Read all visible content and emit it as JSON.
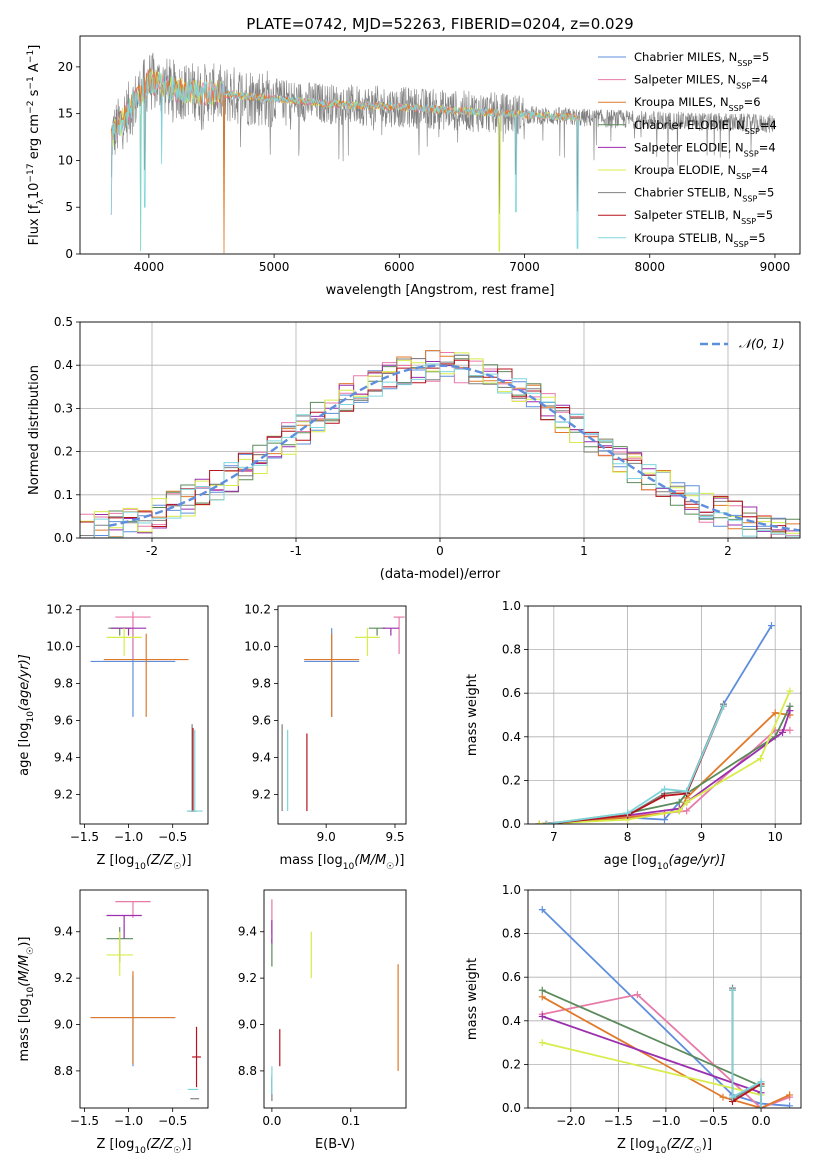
{
  "figure_title": "PLATE=0742, MJD=52263, FIBERID=0204, z=0.029",
  "colors": {
    "chabrier_miles": "#5f8fdc",
    "salpeter_miles": "#e77aa9",
    "kroupa_miles": "#e07a2a",
    "chabrier_elodie": "#5b8a5b",
    "salpeter_elodie": "#9b2fae",
    "kroupa_elodie": "#d8ec4a",
    "chabrier_stelib": "#808080",
    "salpeter_stelib": "#b5141c",
    "kroupa_stelib": "#7ed6dc",
    "gaussian": "#5f8fdc",
    "grid": "#b0b0b0"
  },
  "chart_data": [
    {
      "id": "spectrum",
      "type": "line",
      "xlabel": "wavelength [Angstrom, rest frame]",
      "ylabel": "Flux [f",
      "ylabel_sub": "λ",
      "ylabel_rest": "10",
      "ylabel_exp": "−17",
      "ylabel_tail": " erg cm",
      "ylabel_exp2": "−2",
      "ylabel_tail2": " s",
      "ylabel_exp3": "−1",
      "ylabel_tail3": " A",
      "ylabel_exp4": "−1",
      "ylabel_end": "]",
      "xlim": [
        3450,
        9200
      ],
      "ylim": [
        0,
        23.3
      ],
      "xticks": [
        4000,
        5000,
        6000,
        7000,
        8000,
        9000
      ],
      "yticks": [
        0,
        5,
        10,
        15,
        20
      ],
      "legend_position": "upper right",
      "legend": [
        {
          "label": "Chabrier MILES, N",
          "sub": "SSP",
          "tail": "=5",
          "color": "#5f8fdc"
        },
        {
          "label": "Salpeter MILES, N",
          "sub": "SSP",
          "tail": "=4",
          "color": "#e77aa9"
        },
        {
          "label": "Kroupa MILES, N",
          "sub": "SSP",
          "tail": "=6",
          "color": "#e07a2a"
        },
        {
          "label": "Chabrier ELODIE, N",
          "sub": "SSP",
          "tail": "=4",
          "color": "#5b8a5b"
        },
        {
          "label": "Salpeter ELODIE, N",
          "sub": "SSP",
          "tail": "=4",
          "color": "#9b2fae"
        },
        {
          "label": "Kroupa ELODIE, N",
          "sub": "SSP",
          "tail": "=4",
          "color": "#d8ec4a"
        },
        {
          "label": "Chabrier STELIB, N",
          "sub": "SSP",
          "tail": "=5",
          "color": "#808080"
        },
        {
          "label": "Salpeter STELIB, N",
          "sub": "SSP",
          "tail": "=5",
          "color": "#b5141c"
        },
        {
          "label": "Kroupa STELIB, N",
          "sub": "SSP",
          "tail": "=5",
          "color": "#7ed6dc"
        }
      ],
      "continuum": [
        [
          3700,
          12.5
        ],
        [
          3850,
          15.5
        ],
        [
          4000,
          18.5
        ],
        [
          4200,
          17.6
        ],
        [
          4500,
          17.2
        ],
        [
          5000,
          16.6
        ],
        [
          5500,
          16.0
        ],
        [
          6000,
          15.7
        ],
        [
          6500,
          15.3
        ],
        [
          7000,
          14.9
        ],
        [
          7400,
          14.6
        ],
        [
          7600,
          14.5
        ],
        [
          8000,
          14.3
        ],
        [
          8500,
          14.1
        ],
        [
          9000,
          13.9
        ]
      ],
      "absorption_features": [
        {
          "x": 3700,
          "y": 4.2
        },
        {
          "x": 3934,
          "y": 0.3
        },
        {
          "x": 3969,
          "y": 5.0
        },
        {
          "x": 4102,
          "y": 9.6
        },
        {
          "x": 4600,
          "y": 0.1
        },
        {
          "x": 6800,
          "y": 0.3
        },
        {
          "x": 6930,
          "y": 4.5
        },
        {
          "x": 7425,
          "y": 0.6
        }
      ]
    },
    {
      "id": "residual_histogram",
      "type": "step",
      "xlabel": "(data-model)/error",
      "ylabel": "Normed distribution",
      "xlim": [
        -2.5,
        2.5
      ],
      "ylim": [
        0,
        0.5
      ],
      "xticks": [
        -2,
        -1,
        0,
        1,
        2
      ],
      "yticks": [
        0.0,
        0.1,
        0.2,
        0.3,
        0.4,
        0.5
      ],
      "legend_position": "upper right",
      "gaussian_label": "𝒩(0, 1)",
      "bin_width": 0.1
    },
    {
      "id": "age_vs_Z",
      "type": "errorbar",
      "xlabel": "Z [log",
      "xlabel_sub": "10",
      "xlabel_rest": "(Z/Z",
      "xlabel_sun_sub": "☉",
      "xlabel_end": ")]",
      "ylabel": "age  [log",
      "ylabel_sub": "10",
      "ylabel_rest": "(age/yr)]",
      "xlim": [
        -1.55,
        -0.1
      ],
      "ylim": [
        9.04,
        10.22
      ],
      "xticks": [
        -1.5,
        -1.0,
        -0.5
      ],
      "xticklabels": [
        "−1.5",
        "−1.0",
        "−0.5"
      ],
      "yticks": [
        9.2,
        9.4,
        9.6,
        9.8,
        10.0,
        10.2
      ],
      "points": [
        {
          "model": "chabrier_miles",
          "x": -0.95,
          "xerr": 0.48,
          "y": 9.92,
          "yerr": [
            0.3,
            0.18
          ]
        },
        {
          "model": "kroupa_miles",
          "x": -0.8,
          "xerr": 0.48,
          "y": 9.93,
          "yerr": [
            0.31,
            0.14
          ]
        },
        {
          "model": "salpeter_miles",
          "x": -0.95,
          "xerr": 0.2,
          "y": 10.16,
          "yerr": [
            0.22,
            0.03
          ]
        },
        {
          "model": "chabrier_elodie",
          "x": -1.1,
          "xerr": 0.13,
          "y": 10.1,
          "yerr": [
            0.04,
            0.0
          ]
        },
        {
          "model": "salpeter_elodie",
          "x": -1.0,
          "xerr": 0.2,
          "y": 10.1,
          "yerr": [
            0.04,
            0.0
          ]
        },
        {
          "model": "kroupa_elodie",
          "x": -1.05,
          "xerr": 0.2,
          "y": 10.05,
          "yerr": [
            0.1,
            0.05
          ]
        },
        {
          "model": "chabrier_stelib",
          "x": -0.28,
          "xerr": 0.05,
          "y": 9.11,
          "yerr": [
            0.0,
            0.47
          ]
        },
        {
          "model": "salpeter_stelib",
          "x": -0.27,
          "xerr": 0.02,
          "y": 9.11,
          "yerr": [
            0.0,
            0.45
          ]
        },
        {
          "model": "kroupa_stelib",
          "x": -0.25,
          "xerr": 0.09,
          "y": 9.11,
          "yerr": [
            0.0,
            0.44
          ]
        }
      ]
    },
    {
      "id": "age_vs_mass",
      "type": "errorbar",
      "xlabel": "mass [log",
      "xlabel_sub": "10",
      "xlabel_rest": "(M/M",
      "xlabel_sun_sub": "☉",
      "xlabel_end": ")]",
      "xlim": [
        8.65,
        9.58
      ],
      "ylim": [
        9.04,
        10.22
      ],
      "xticks": [
        9.0,
        9.5
      ],
      "yticks": [
        9.2,
        9.4,
        9.6,
        9.8,
        10.0,
        10.2
      ],
      "points": [
        {
          "model": "chabrier_miles",
          "x": 9.04,
          "xerr": 0.2,
          "y": 9.92,
          "yerr": [
            0.3,
            0.18
          ]
        },
        {
          "model": "kroupa_miles",
          "x": 9.04,
          "xerr": 0.2,
          "y": 9.93,
          "yerr": [
            0.31,
            0.14
          ]
        },
        {
          "model": "salpeter_miles",
          "x": 9.53,
          "xerr": 0.04,
          "y": 10.16,
          "yerr": [
            0.2,
            0.0
          ]
        },
        {
          "model": "chabrier_elodie",
          "x": 9.37,
          "xerr": 0.06,
          "y": 10.1,
          "yerr": [
            0.04,
            0.0
          ]
        },
        {
          "model": "salpeter_elodie",
          "x": 9.47,
          "xerr": 0.06,
          "y": 10.1,
          "yerr": [
            0.04,
            0.0
          ]
        },
        {
          "model": "kroupa_elodie",
          "x": 9.3,
          "xerr": 0.09,
          "y": 10.05,
          "yerr": [
            0.1,
            0.05
          ]
        },
        {
          "model": "chabrier_stelib",
          "x": 8.68,
          "xerr": 0.0,
          "y": 9.11,
          "yerr": [
            0.0,
            0.47
          ]
        },
        {
          "model": "salpeter_stelib",
          "x": 8.86,
          "xerr": 0.0,
          "y": 9.11,
          "yerr": [
            0.0,
            0.42
          ]
        },
        {
          "model": "kroupa_stelib",
          "x": 8.72,
          "xerr": 0.0,
          "y": 9.11,
          "yerr": [
            0.0,
            0.44
          ]
        }
      ]
    },
    {
      "id": "massweight_vs_age",
      "type": "line",
      "xlabel": "age  [log",
      "xlabel_sub": "10",
      "xlabel_rest": "(age/yr)]",
      "ylabel": "mass weight",
      "xlim": [
        6.65,
        10.35
      ],
      "ylim": [
        0,
        1.0
      ],
      "xticks": [
        7,
        8,
        9,
        10
      ],
      "yticks": [
        0.0,
        0.2,
        0.4,
        0.6,
        0.8,
        1.0
      ],
      "series": [
        {
          "model": "chabrier_miles",
          "x": [
            6.8,
            8.0,
            8.5,
            8.8,
            9.3,
            9.95
          ],
          "y": [
            0.0,
            0.03,
            0.02,
            0.14,
            0.55,
            0.91
          ]
        },
        {
          "model": "salpeter_miles",
          "x": [
            6.8,
            8.5,
            8.8,
            10.0,
            10.2
          ],
          "y": [
            0.0,
            0.05,
            0.06,
            0.43,
            0.43
          ]
        },
        {
          "model": "kroupa_miles",
          "x": [
            6.8,
            8.0,
            8.5,
            8.7,
            8.8,
            10.0,
            10.2
          ],
          "y": [
            0.0,
            0.03,
            0.05,
            0.06,
            0.12,
            0.51,
            0.5
          ]
        },
        {
          "model": "chabrier_elodie",
          "x": [
            6.9,
            8.0,
            8.7,
            8.8,
            10.0,
            10.2
          ],
          "y": [
            0.0,
            0.05,
            0.1,
            0.14,
            0.4,
            0.54
          ]
        },
        {
          "model": "salpeter_elodie",
          "x": [
            6.9,
            8.0,
            8.7,
            8.8,
            10.1,
            10.2
          ],
          "y": [
            0.0,
            0.04,
            0.07,
            0.1,
            0.42,
            0.52
          ]
        },
        {
          "model": "kroupa_elodie",
          "x": [
            6.8,
            8.0,
            8.7,
            8.8,
            9.8,
            10.2
          ],
          "y": [
            0.0,
            0.02,
            0.06,
            0.1,
            0.3,
            0.61
          ]
        },
        {
          "model": "chabrier_stelib",
          "x": [
            6.9,
            8.0,
            8.5,
            8.8,
            9.3
          ],
          "y": [
            0.0,
            0.04,
            0.14,
            0.15,
            0.55
          ]
        },
        {
          "model": "salpeter_stelib",
          "x": [
            6.9,
            8.0,
            8.5,
            8.8,
            9.3
          ],
          "y": [
            0.0,
            0.04,
            0.13,
            0.14,
            0.54
          ]
        },
        {
          "model": "kroupa_stelib",
          "x": [
            6.9,
            8.0,
            8.5,
            8.8,
            9.3
          ],
          "y": [
            0.0,
            0.05,
            0.16,
            0.15,
            0.54
          ]
        }
      ]
    },
    {
      "id": "mass_vs_Z",
      "type": "errorbar",
      "xlabel": "Z [log",
      "xlabel_sub": "10",
      "xlabel_rest": "(Z/Z",
      "xlabel_sun_sub": "☉",
      "xlabel_end": ")]",
      "ylabel": "mass [log",
      "ylabel_sub": "10",
      "ylabel_rest": "(M/M",
      "ylabel_sun_sub": "☉",
      "ylabel_end": ")]",
      "xlim": [
        -1.55,
        -0.1
      ],
      "ylim": [
        8.64,
        9.58
      ],
      "xticks": [
        -1.5,
        -1.0,
        -0.5
      ],
      "xticklabels": [
        "−1.5",
        "−1.0",
        "−0.5"
      ],
      "yticks": [
        8.8,
        9.0,
        9.2,
        9.4
      ],
      "points": [
        {
          "model": "chabrier_miles",
          "x": -0.95,
          "xerr": 0.48,
          "y": 9.03,
          "yerr": [
            0.21,
            0.18
          ]
        },
        {
          "model": "kroupa_miles",
          "x": -0.95,
          "xerr": 0.48,
          "y": 9.03,
          "yerr": [
            0.2,
            0.2
          ]
        },
        {
          "model": "salpeter_miles",
          "x": -0.95,
          "xerr": 0.2,
          "y": 9.53,
          "yerr": [
            0.07,
            0.0
          ]
        },
        {
          "model": "chabrier_elodie",
          "x": -1.1,
          "xerr": 0.15,
          "y": 9.37,
          "yerr": [
            0.1,
            0.05
          ]
        },
        {
          "model": "salpeter_elodie",
          "x": -1.05,
          "xerr": 0.2,
          "y": 9.47,
          "yerr": [
            0.1,
            0.0
          ]
        },
        {
          "model": "kroupa_elodie",
          "x": -1.1,
          "xerr": 0.15,
          "y": 9.3,
          "yerr": [
            0.09,
            0.1
          ]
        },
        {
          "model": "chabrier_stelib",
          "x": -0.25,
          "xerr": 0.05,
          "y": 8.68,
          "yerr": [
            0.0,
            0.0
          ]
        },
        {
          "model": "salpeter_stelib",
          "x": -0.23,
          "xerr": 0.05,
          "y": 8.86,
          "yerr": [
            0.13,
            0.13
          ]
        },
        {
          "model": "kroupa_stelib",
          "x": -0.27,
          "xerr": 0.06,
          "y": 8.72,
          "yerr": [
            0.0,
            0.0
          ]
        }
      ]
    },
    {
      "id": "mass_vs_EBV",
      "type": "errorbar",
      "xlabel": "E(B-V)",
      "xlim": [
        -0.01,
        0.17
      ],
      "ylim": [
        8.64,
        9.58
      ],
      "xticks": [
        0.0,
        0.1
      ],
      "yticks": [
        8.8,
        9.0,
        9.2,
        9.4
      ],
      "points": [
        {
          "model": "chabrier_miles",
          "x": 0.0,
          "y": 8.78,
          "yerr": [
            0.08,
            0.0
          ]
        },
        {
          "model": "salpeter_miles",
          "x": 0.0,
          "y": 9.49,
          "yerr": [
            0.1,
            0.05
          ]
        },
        {
          "model": "kroupa_miles",
          "x": 0.16,
          "y": 9.03,
          "yerr": [
            0.23,
            0.23
          ]
        },
        {
          "model": "chabrier_elodie",
          "x": 0.0,
          "y": 9.35,
          "yerr": [
            0.1,
            0.02
          ]
        },
        {
          "model": "salpeter_elodie",
          "x": 0.0,
          "y": 9.4,
          "yerr": [
            0.05,
            0.05
          ]
        },
        {
          "model": "kroupa_elodie",
          "x": 0.05,
          "y": 9.3,
          "yerr": [
            0.1,
            0.1
          ]
        },
        {
          "model": "chabrier_stelib",
          "x": 0.0,
          "y": 8.72,
          "yerr": [
            0.05,
            0.05
          ]
        },
        {
          "model": "salpeter_stelib",
          "x": 0.01,
          "y": 8.9,
          "yerr": [
            0.08,
            0.08
          ]
        },
        {
          "model": "kroupa_stelib",
          "x": 0.0,
          "y": 8.76,
          "yerr": [
            0.06,
            0.06
          ]
        }
      ]
    },
    {
      "id": "massweight_vs_Z",
      "type": "line",
      "xlabel": "Z [log",
      "xlabel_sub": "10",
      "xlabel_rest": "(Z/Z",
      "xlabel_sun_sub": "☉",
      "xlabel_end": ")]",
      "ylabel": "mass weight",
      "xlim": [
        -2.45,
        0.42
      ],
      "ylim": [
        0,
        1.0
      ],
      "xticks": [
        -2.0,
        -1.5,
        -1.0,
        -0.5,
        0.0
      ],
      "xticklabels": [
        "−2.0",
        "−1.5",
        "−1.0",
        "−0.5",
        "0.0"
      ],
      "yticks": [
        0.0,
        0.2,
        0.4,
        0.6,
        0.8,
        1.0
      ],
      "series": [
        {
          "model": "chabrier_miles",
          "x": [
            -2.3,
            -0.3,
            0.0,
            0.3
          ],
          "y": [
            0.91,
            0.06,
            0.02,
            0.01
          ]
        },
        {
          "model": "salpeter_miles",
          "x": [
            -2.3,
            -1.3,
            0.0,
            0.3
          ],
          "y": [
            0.43,
            0.52,
            0.0,
            0.05
          ]
        },
        {
          "model": "kroupa_miles",
          "x": [
            -2.3,
            -0.4,
            0.0,
            0.3
          ],
          "y": [
            0.51,
            0.05,
            0.0,
            0.06
          ]
        },
        {
          "model": "chabrier_elodie",
          "x": [
            -2.3,
            0.0,
            0.0
          ],
          "y": [
            0.54,
            0.1,
            0.0
          ]
        },
        {
          "model": "salpeter_elodie",
          "x": [
            -2.3,
            0.0,
            0.0
          ],
          "y": [
            0.42,
            0.07,
            0.0
          ]
        },
        {
          "model": "kroupa_elodie",
          "x": [
            -2.3,
            0.0,
            0.0
          ],
          "y": [
            0.3,
            0.06,
            0.0
          ]
        },
        {
          "model": "chabrier_stelib",
          "x": [
            -0.3,
            -0.3,
            0.0,
            0.0
          ],
          "y": [
            0.55,
            0.04,
            0.12,
            0.0
          ]
        },
        {
          "model": "salpeter_stelib",
          "x": [
            -0.3,
            -0.3,
            0.0,
            0.0
          ],
          "y": [
            0.54,
            0.03,
            0.11,
            0.0
          ]
        },
        {
          "model": "kroupa_stelib",
          "x": [
            -0.3,
            -0.3,
            0.0,
            0.0
          ],
          "y": [
            0.54,
            0.05,
            0.12,
            0.0
          ]
        }
      ]
    }
  ]
}
